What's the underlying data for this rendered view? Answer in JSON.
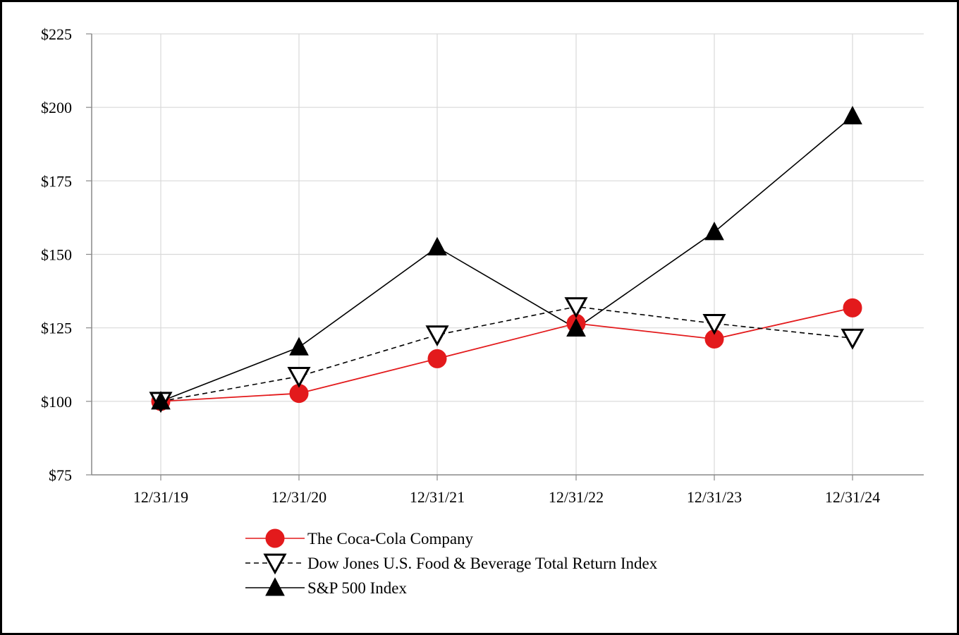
{
  "chart_data": {
    "type": "line",
    "title": "",
    "xlabel": "",
    "ylabel": "",
    "categories": [
      "12/31/19",
      "12/31/20",
      "12/31/21",
      "12/31/22",
      "12/31/23",
      "12/31/24"
    ],
    "ylim": [
      75,
      225
    ],
    "y_ticks": [
      75,
      100,
      125,
      150,
      175,
      200,
      225
    ],
    "y_tick_labels": [
      "$75",
      "$100",
      "$125",
      "$150",
      "$175",
      "$200",
      "$225"
    ],
    "grid": true,
    "legend_position": "bottom",
    "series": [
      {
        "name": "The Coca-Cola Company",
        "values": [
          100,
          102.7,
          114.5,
          126.5,
          121.2,
          131.8
        ],
        "color": "#e31a1c",
        "line_style": "solid",
        "marker": "filled-circle"
      },
      {
        "name": "Dow Jones U.S. Food & Beverage Total Return Index",
        "values": [
          100,
          108.5,
          122.6,
          132.2,
          126.5,
          121.5
        ],
        "color": "#000000",
        "line_style": "dashed",
        "marker": "open-down-triangle"
      },
      {
        "name": "S&P 500 Index",
        "values": [
          100,
          118.4,
          152.4,
          124.8,
          157.6,
          197.0
        ],
        "color": "#000000",
        "line_style": "solid",
        "marker": "filled-up-triangle"
      }
    ]
  }
}
